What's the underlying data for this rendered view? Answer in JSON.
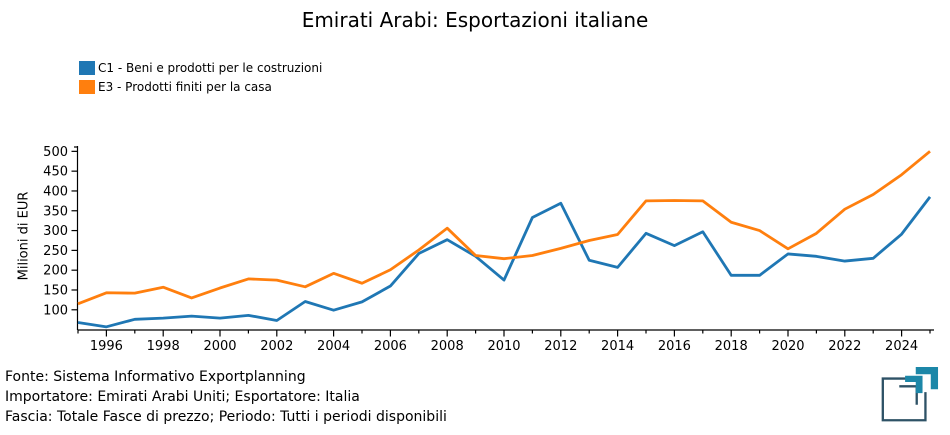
{
  "title": "Emirati Arabi: Esportazioni italiane",
  "legend": [
    {
      "label": "C1 - Beni e prodotti per le costruzioni",
      "color": "#1f77b4"
    },
    {
      "label": "E3 - Prodotti finiti per la casa",
      "color": "#ff7f0e"
    }
  ],
  "chart_data": {
    "type": "line",
    "title": "Emirati Arabi: Esportazioni italiane",
    "xlabel": "",
    "ylabel": "Milioni di EUR",
    "x": [
      1995,
      1996,
      1997,
      1998,
      1999,
      2000,
      2001,
      2002,
      2003,
      2004,
      2005,
      2006,
      2007,
      2008,
      2009,
      2010,
      2011,
      2012,
      2013,
      2014,
      2015,
      2016,
      2017,
      2018,
      2019,
      2020,
      2021,
      2022,
      2023,
      2024,
      2025
    ],
    "series": [
      {
        "name": "C1 - Beni e prodotti per le costruzioni",
        "color": "#1f77b4",
        "values": [
          68,
          57,
          76,
          79,
          84,
          79,
          86,
          73,
          121,
          99,
          120,
          160,
          242,
          277,
          235,
          175,
          333,
          369,
          225,
          207,
          293,
          262,
          297,
          187,
          187,
          241,
          235,
          223,
          230,
          291,
          385
        ]
      },
      {
        "name": "E3 - Prodotti finiti per la casa",
        "color": "#ff7f0e",
        "values": [
          115,
          143,
          142,
          157,
          130,
          155,
          178,
          175,
          158,
          192,
          167,
          201,
          251,
          306,
          237,
          229,
          237,
          255,
          275,
          290,
          375,
          376,
          375,
          321,
          300,
          254,
          293,
          354,
          391,
          441,
          500
        ]
      }
    ],
    "xticks": [
      1996,
      1998,
      2000,
      2002,
      2004,
      2006,
      2008,
      2010,
      2012,
      2014,
      2016,
      2018,
      2020,
      2022,
      2024
    ],
    "yticks": [
      100,
      150,
      200,
      250,
      300,
      350,
      400,
      450,
      500
    ],
    "xlim": [
      1995,
      2025
    ],
    "ylim": [
      49,
      513.5
    ],
    "grid": false,
    "legend_position": "upper-left",
    "axis_color": "#000000"
  },
  "footer": {
    "line1": "Fonte: Sistema Informativo Exportplanning",
    "line2": "Importatore: Emirati Arabi Uniti; Esportatore: Italia",
    "line3": "Fascia: Totale Fasce di prezzo; Periodo: Tutti i periodi disponibili"
  },
  "logo": {
    "name": "exportplanning-logo",
    "teal": "#1c87a8",
    "dark": "#2e5266"
  }
}
